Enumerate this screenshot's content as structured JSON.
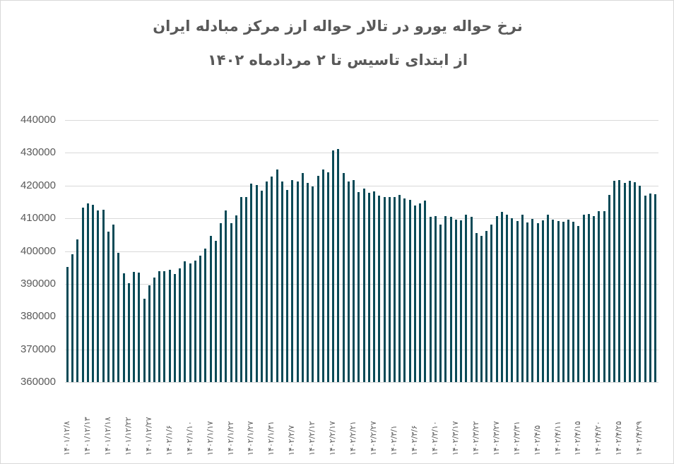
{
  "chart_data": {
    "type": "bar",
    "title": "نرخ حواله یورو در تالار حواله ارز مرکز مبادله ایران",
    "subtitle": "از ابتدای تاسیس تا ۲ مردادماه ۱۴۰۲",
    "xlabel": "",
    "ylabel": "",
    "ylim": [
      360000,
      440000
    ],
    "yticks": [
      "440000",
      "430000",
      "420000",
      "410000",
      "400000",
      "390000",
      "380000",
      "370000",
      "360000"
    ],
    "grid": true,
    "legend": null,
    "bar_color": "#0a4a57",
    "x_tick_labels": [
      "۱۴۰۱/۱۲/۸",
      "۱۴۰۱/۱۲/۱۳",
      "۱۴۰۱/۱۲/۱۸",
      "۱۴۰۱/۱۲/۲۲",
      "۱۴۰۱/۱۲/۲۷",
      "۱۴۰۲/۱/۶",
      "۱۴۰۲/۱/۱۰",
      "۱۴۰۲/۱/۱۷",
      "۱۴۰۲/۱/۲۲",
      "۱۴۰۲/۱/۲۷",
      "۱۴۰۲/۱/۳۱",
      "۱۴۰۲/۲/۷",
      "۱۴۰۲/۲/۱۲",
      "۱۴۰۲/۲/۱۷",
      "۱۴۰۲/۲/۲۱",
      "۱۴۰۲/۲/۲۷",
      "۱۴۰۲/۳/۱",
      "۱۴۰۲/۳/۶",
      "۱۴۰۲/۳/۱۰",
      "۱۴۰۲/۳/۱۷",
      "۱۴۰۲/۳/۲۲",
      "۱۴۰۲/۳/۲۷",
      "۱۴۰۲/۳/۳۱",
      "۱۴۰۲/۴/۵",
      "۱۴۰۲/۴/۱۱",
      "۱۴۰۲/۴/۱۵",
      "۱۴۰۲/۴/۲۰",
      "۱۴۰۲/۴/۲۵",
      "۱۴۰۲/۴/۲۹"
    ],
    "x_tick_every": 4,
    "values": [
      395100,
      399000,
      403500,
      413200,
      414500,
      414100,
      412400,
      412600,
      405900,
      408100,
      399400,
      393200,
      390200,
      393600,
      393400,
      385400,
      389500,
      391900,
      393800,
      393800,
      394300,
      393000,
      394700,
      396900,
      396200,
      397100,
      398600,
      400700,
      404600,
      403100,
      408500,
      412400,
      408500,
      410900,
      416500,
      416500,
      420600,
      420100,
      418400,
      421200,
      422700,
      424900,
      421200,
      418600,
      421600,
      421200,
      423800,
      420800,
      419700,
      422900,
      424900,
      424000,
      430700,
      431100,
      423800,
      421200,
      421600,
      418000,
      419100,
      417800,
      418200,
      416900,
      416500,
      416500,
      416500,
      417100,
      416000,
      415600,
      413900,
      414500,
      415400,
      410400,
      410600,
      408100,
      410600,
      410400,
      409600,
      409400,
      411100,
      410400,
      405500,
      404600,
      406100,
      408100,
      410600,
      411900,
      411100,
      410000,
      409100,
      411100,
      408700,
      409800,
      408500,
      409400,
      411100,
      409600,
      409100,
      408900,
      409600,
      408900,
      407600,
      411100,
      411300,
      410600,
      412200,
      412200,
      417100,
      421400,
      421600,
      420800,
      421400,
      421000,
      419900,
      416900,
      417500,
      417300
    ]
  }
}
